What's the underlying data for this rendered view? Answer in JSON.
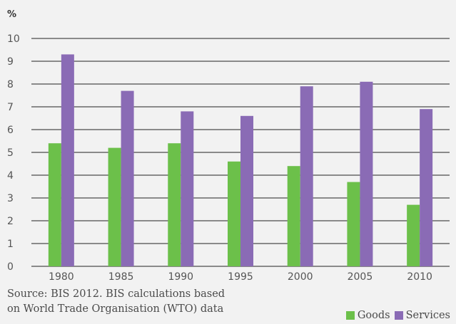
{
  "chart_data": {
    "type": "bar",
    "title": "",
    "ylabel": "%",
    "xlabel": "",
    "ylim": [
      0,
      10
    ],
    "yticks": [
      0,
      1,
      2,
      3,
      4,
      5,
      6,
      7,
      8,
      9,
      10
    ],
    "grid": true,
    "legend_position": "bottom-right",
    "categories": [
      "1980",
      "1985",
      "1990",
      "1995",
      "2000",
      "2005",
      "2010"
    ],
    "series": [
      {
        "name": "Goods",
        "color": "#6cc04a",
        "values": [
          5.4,
          5.2,
          5.4,
          4.6,
          4.4,
          3.7,
          2.7
        ]
      },
      {
        "name": "Services",
        "color": "#8a6bb5",
        "values": [
          9.3,
          7.7,
          6.8,
          6.6,
          7.9,
          8.1,
          6.9
        ]
      }
    ]
  },
  "source": {
    "line1": "Source: BIS 2012. BIS calculations based",
    "line2": "on World Trade Organisation (WTO) data"
  }
}
